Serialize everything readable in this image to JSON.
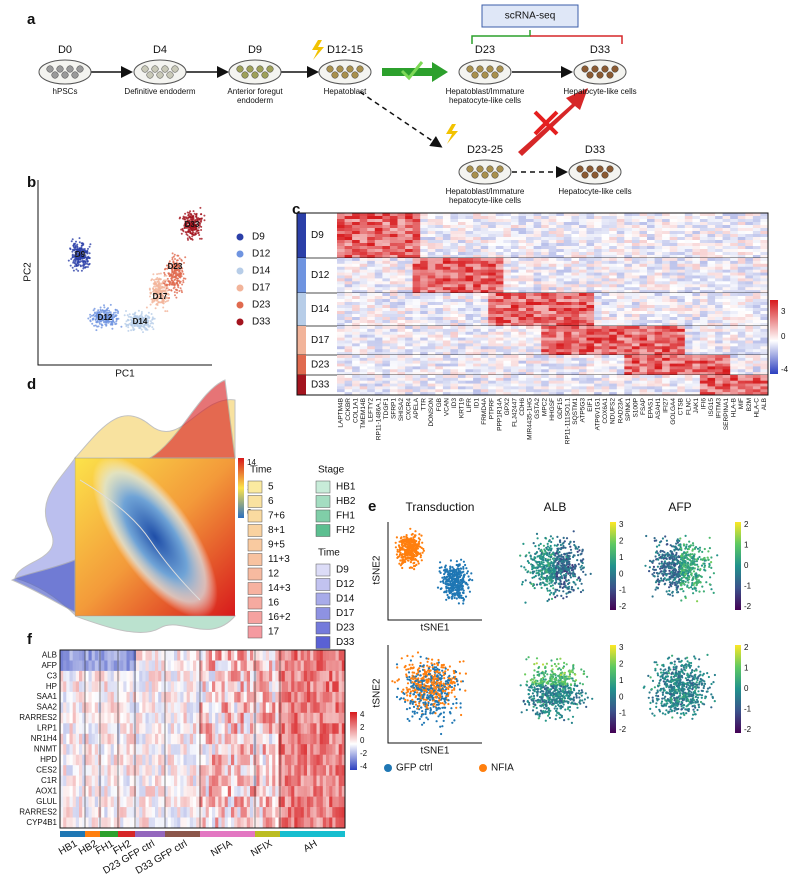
{
  "a": {
    "label": "a",
    "scrna": "scRNA-seq",
    "stages": [
      {
        "day": "D0",
        "name": [
          "hPSCs"
        ]
      },
      {
        "day": "D4",
        "name": [
          "Definitive endoderm"
        ]
      },
      {
        "day": "D9",
        "name": [
          "Anterior foregut",
          "endoderm"
        ]
      },
      {
        "day": "D12-15",
        "name": [
          "Hepatoblast"
        ]
      },
      {
        "day": "D23",
        "name": [
          "Hepatoblast/Immature",
          "hepatocyte-like cells"
        ]
      },
      {
        "day": "D33",
        "name": [
          "Hepatocyte-like cells"
        ]
      },
      {
        "day": "D23-25",
        "name": [
          "Hepatoblast/Immature",
          "hepatocyte-like cells"
        ]
      },
      {
        "day": "D33",
        "name": [
          "Hepatocyte-like cells"
        ]
      }
    ]
  },
  "b": {
    "label": "b",
    "xlabel": "PC1",
    "ylabel": "PC2",
    "groups": [
      {
        "name": "D9",
        "color": "#2b3fa8"
      },
      {
        "name": "D12",
        "color": "#6f94e0"
      },
      {
        "name": "D14",
        "color": "#b7cde8"
      },
      {
        "name": "D17",
        "color": "#f2b49a"
      },
      {
        "name": "D23",
        "color": "#e06a4f"
      },
      {
        "name": "D33",
        "color": "#a3141e"
      }
    ]
  },
  "c": {
    "label": "c",
    "rows": [
      "D9",
      "D12",
      "D14",
      "D17",
      "D23",
      "D33"
    ],
    "genes": [
      "LAPTM4B",
      "CCKBR",
      "COL1A1",
      "TMEM14B",
      "LEFTY2",
      "RP11-1486A.1",
      "TDGF1",
      "SFRP1",
      "SHISA2",
      "CXCR4",
      "APELA",
      "TTR",
      "DONSON",
      "FGB",
      "VCAN",
      "ID3",
      "KRT19",
      "LIFR",
      "ID1",
      "FRMD4A",
      "PTPRF",
      "PPP1R14A",
      "GPX2",
      "FLJ42447",
      "CDH6",
      "MIR4435-1HG",
      "GSTA2",
      "MPC2",
      "HHGSF",
      "GDF15",
      "RP11-111SO1.1",
      "SQSTM1",
      "ATP5G3",
      "EIF1",
      "ATP6V1G1",
      "COX6A1",
      "NDUFS2",
      "RAD23A",
      "SPINK1",
      "S100P",
      "FSAP",
      "EPAS1",
      "ASAH1",
      "IFI27",
      "GOLGA4",
      "CTSB",
      "FLNC",
      "JAK1",
      "IFI6",
      "ISG15",
      "IFITM3",
      "SERPINA1",
      "HLA-B",
      "MIF",
      "B2M",
      "HLA-C",
      "ALB"
    ],
    "colorbar_ticks": [
      3,
      0,
      -4
    ]
  },
  "d": {
    "label": "d",
    "colorbar_ticks": [
      14,
      10,
      6
    ],
    "time_title": "Time",
    "time": [
      "5",
      "6",
      "7+6",
      "8+1",
      "9+5",
      "11+3",
      "12",
      "14+3",
      "16",
      "16+2",
      "17"
    ],
    "stage_title": "Stage",
    "stage": [
      "HB1",
      "HB2",
      "FH1",
      "FH2"
    ],
    "day_title": "Time",
    "days": [
      "D9",
      "D12",
      "D14",
      "D17",
      "D23",
      "D33"
    ]
  },
  "e": {
    "label": "e",
    "titles": [
      "Transduction",
      "ALB",
      "AFP"
    ],
    "xlabel": "tSNE1",
    "ylabel": "tSNE2",
    "legend": [
      {
        "name": "GFP ctrl",
        "color": "#1f77b4"
      },
      {
        "name": "NFIA",
        "color": "#ff7f0e"
      }
    ],
    "colorbars": [
      [
        3,
        2,
        1,
        0,
        -1,
        -2
      ],
      [
        2,
        1,
        0,
        -1,
        -2
      ],
      [
        3,
        2,
        1,
        0,
        -1,
        -2
      ],
      [
        2,
        1,
        0,
        -1,
        -2
      ]
    ]
  },
  "f": {
    "label": "f",
    "genes": [
      "ALB",
      "AFP",
      "C3",
      "HP",
      "SAA1",
      "SAA2",
      "RARRES2",
      "LRP1",
      "NR1H4",
      "NNMT",
      "HPD",
      "CES2",
      "C1R",
      "AOX1",
      "GLUL",
      "RARRES2",
      "CYP4B1"
    ],
    "colorbar_ticks": [
      4,
      2,
      0,
      -2,
      -4
    ],
    "groups": [
      {
        "name": "HB1",
        "color": "#1f77b4"
      },
      {
        "name": "HB2",
        "color": "#ff7f0e"
      },
      {
        "name": "FH1",
        "color": "#2ca02c"
      },
      {
        "name": "FH2",
        "color": "#d62728"
      },
      {
        "name": "D23 GFP ctrl",
        "color": "#9467bd"
      },
      {
        "name": "D33 GFP ctrl",
        "color": "#8c564b"
      },
      {
        "name": "NFIA",
        "color": "#e377c2"
      },
      {
        "name": "NFIX",
        "color": "#bcbd22"
      },
      {
        "name": "AH",
        "color": "#17becf"
      }
    ]
  }
}
